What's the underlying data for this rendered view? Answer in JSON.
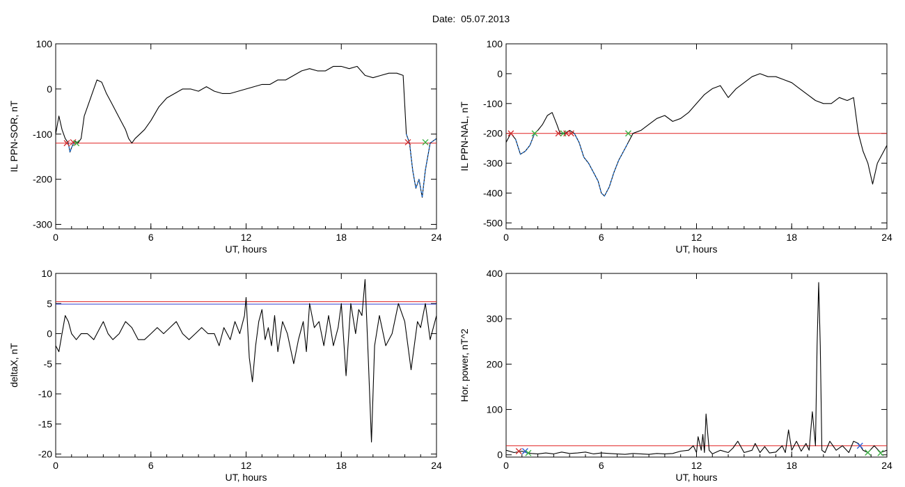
{
  "page": {
    "title": "Date:  05.07.2013"
  },
  "colors": {
    "trace": "#000000",
    "threshold_red": "#e02020",
    "threshold_blue": "#3040d0",
    "segment_blue": "#1e6fd0",
    "marker_red": "#d03030",
    "marker_green": "#3cb043",
    "marker_blue": "#2a5bd7"
  },
  "chart_data": [
    {
      "type": "line",
      "id": "il-ppn-sor",
      "xlabel": "UT, hours",
      "ylabel": "IL PPN-SOR, nT",
      "xlim": [
        0,
        24
      ],
      "ylim": [
        -310,
        100
      ],
      "xticks": [
        0,
        6,
        12,
        18,
        24
      ],
      "xtick_labels": [
        "0",
        "6",
        "12",
        "18",
        "24"
      ],
      "yticks": [
        100,
        0,
        -100,
        -200,
        -300
      ],
      "ytick_labels": [
        "100",
        "0",
        "-100",
        "-200",
        "-300"
      ],
      "threshold_lines": [
        {
          "y": -120,
          "color": "red"
        }
      ],
      "series": [
        {
          "x": [
            0,
            0.2,
            0.4,
            0.6,
            0.8,
            0.9,
            1.0,
            1.2,
            1.4,
            1.6,
            1.8,
            2.0,
            2.3,
            2.6,
            2.9,
            3.2,
            3.5,
            3.8,
            4.1,
            4.4,
            4.6,
            4.8,
            5.0,
            5.3,
            5.6,
            6.0,
            6.5,
            7.0,
            7.5,
            8.0,
            8.5,
            9.0,
            9.5,
            10,
            10.5,
            11,
            11.5,
            12,
            12.5,
            13,
            13.5,
            14,
            14.5,
            15,
            15.5,
            16,
            16.5,
            17,
            17.5,
            18,
            18.5,
            19,
            19.5,
            20,
            20.5,
            21,
            21.5,
            21.9,
            22.1,
            22.3,
            22.5,
            22.7,
            22.9,
            23.1,
            23.3,
            23.6,
            24
          ],
          "y": [
            -100,
            -60,
            -90,
            -110,
            -120,
            -140,
            -130,
            -115,
            -120,
            -110,
            -60,
            -40,
            -10,
            20,
            15,
            -10,
            -30,
            -50,
            -70,
            -90,
            -110,
            -120,
            -110,
            -100,
            -90,
            -70,
            -40,
            -20,
            -10,
            0,
            0,
            -5,
            5,
            -5,
            -10,
            -10,
            -5,
            0,
            5,
            10,
            10,
            20,
            20,
            30,
            40,
            45,
            40,
            40,
            50,
            50,
            45,
            50,
            30,
            25,
            30,
            35,
            35,
            30,
            -100,
            -120,
            -180,
            -220,
            -200,
            -240,
            -180,
            -120,
            -110
          ],
          "blue_ranges": [
            [
              0.8,
              1.3
            ],
            [
              22.1,
              24
            ]
          ]
        }
      ],
      "markers": [
        {
          "x": 0.7,
          "y": -120,
          "symbol": "x",
          "color": "red"
        },
        {
          "x": 1.1,
          "y": -118,
          "symbol": "x",
          "color": "red"
        },
        {
          "x": 1.3,
          "y": -120,
          "symbol": "x",
          "color": "green"
        },
        {
          "x": 22.2,
          "y": -118,
          "symbol": "x",
          "color": "red"
        },
        {
          "x": 23.3,
          "y": -118,
          "symbol": "x",
          "color": "green"
        }
      ]
    },
    {
      "type": "line",
      "id": "il-ppn-nal",
      "xlabel": "UT, hours",
      "ylabel": "IL PPN-NAL, nT",
      "xlim": [
        0,
        24
      ],
      "ylim": [
        -520,
        100
      ],
      "xticks": [
        0,
        6,
        12,
        18,
        24
      ],
      "xtick_labels": [
        "0",
        "6",
        "12",
        "18",
        "24"
      ],
      "yticks": [
        100,
        0,
        -100,
        -200,
        -300,
        -400,
        -500
      ],
      "ytick_labels": [
        "100",
        "0",
        "-100",
        "-200",
        "-300",
        "-400",
        "-500"
      ],
      "threshold_lines": [
        {
          "y": -200,
          "color": "red"
        }
      ],
      "series": [
        {
          "x": [
            0,
            0.3,
            0.6,
            0.9,
            1.2,
            1.5,
            1.8,
            2.0,
            2.3,
            2.6,
            2.9,
            3.2,
            3.4,
            3.7,
            4.0,
            4.3,
            4.6,
            4.9,
            5.2,
            5.5,
            5.8,
            6.0,
            6.2,
            6.5,
            6.8,
            7.1,
            7.4,
            7.7,
            8.0,
            8.5,
            9.0,
            9.5,
            10,
            10.5,
            11,
            11.5,
            12,
            12.5,
            13,
            13.5,
            14,
            14.5,
            15,
            15.5,
            16,
            16.5,
            17,
            17.5,
            18,
            18.5,
            19,
            19.5,
            20,
            20.5,
            21,
            21.5,
            21.9,
            22.2,
            22.5,
            22.8,
            23.1,
            23.4,
            23.7,
            24
          ],
          "y": [
            -230,
            -200,
            -220,
            -270,
            -260,
            -240,
            -200,
            -190,
            -170,
            -140,
            -130,
            -170,
            -200,
            -200,
            -190,
            -200,
            -230,
            -280,
            -300,
            -330,
            -360,
            -400,
            -410,
            -380,
            -330,
            -290,
            -260,
            -230,
            -200,
            -190,
            -170,
            -150,
            -140,
            -160,
            -150,
            -130,
            -100,
            -70,
            -50,
            -40,
            -80,
            -50,
            -30,
            -10,
            0,
            -10,
            -10,
            -20,
            -30,
            -50,
            -70,
            -90,
            -100,
            -100,
            -80,
            -90,
            -80,
            -200,
            -260,
            -300,
            -370,
            -300,
            -270,
            -240
          ],
          "blue_ranges": [
            [
              0.6,
              1.8
            ],
            [
              3.6,
              3.8
            ],
            [
              4.3,
              7.7
            ]
          ]
        }
      ],
      "markers": [
        {
          "x": 0.3,
          "y": -200,
          "symbol": "x",
          "color": "red"
        },
        {
          "x": 1.8,
          "y": -200,
          "symbol": "x",
          "color": "green"
        },
        {
          "x": 3.3,
          "y": -200,
          "symbol": "x",
          "color": "red"
        },
        {
          "x": 3.6,
          "y": -200,
          "symbol": "x",
          "color": "green"
        },
        {
          "x": 3.8,
          "y": -200,
          "symbol": "x",
          "color": "red"
        },
        {
          "x": 4.1,
          "y": -200,
          "symbol": "x",
          "color": "red"
        },
        {
          "x": 7.7,
          "y": -200,
          "symbol": "x",
          "color": "green"
        }
      ]
    },
    {
      "type": "line",
      "id": "deltax",
      "xlabel": "UT, hours",
      "ylabel": "deltaX, nT",
      "xlim": [
        0,
        24
      ],
      "ylim": [
        -20.5,
        10
      ],
      "xticks": [
        0,
        6,
        12,
        18,
        24
      ],
      "xtick_labels": [
        "0",
        "6",
        "12",
        "18",
        "24"
      ],
      "yticks": [
        10,
        5,
        0,
        -5,
        -10,
        -15,
        -20
      ],
      "ytick_labels": [
        "10",
        "5",
        "0",
        "-5",
        "-10",
        "-15",
        "-20"
      ],
      "threshold_lines": [
        {
          "y": 5.3,
          "color": "red"
        },
        {
          "y": 4.9,
          "color": "blue"
        }
      ],
      "series": [
        {
          "x": [
            0,
            0.2,
            0.4,
            0.6,
            0.8,
            1.0,
            1.3,
            1.6,
            2.0,
            2.4,
            2.8,
            3.0,
            3.3,
            3.6,
            4.0,
            4.4,
            4.8,
            5.2,
            5.6,
            6.0,
            6.4,
            6.8,
            7.2,
            7.6,
            8.0,
            8.4,
            8.8,
            9.2,
            9.6,
            10.0,
            10.3,
            10.6,
            11.0,
            11.3,
            11.6,
            11.9,
            12.0,
            12.2,
            12.4,
            12.6,
            12.8,
            13.0,
            13.2,
            13.4,
            13.6,
            13.8,
            14.0,
            14.3,
            14.6,
            15.0,
            15.3,
            15.6,
            15.8,
            16.0,
            16.3,
            16.6,
            16.9,
            17.2,
            17.5,
            17.8,
            18.0,
            18.3,
            18.6,
            18.9,
            19.1,
            19.3,
            19.5,
            19.7,
            19.9,
            20.1,
            20.4,
            20.8,
            21.2,
            21.6,
            22.0,
            22.4,
            22.8,
            23.0,
            23.3,
            23.6,
            24
          ],
          "y": [
            -2,
            -3,
            0,
            3,
            2,
            0,
            -1,
            0,
            0,
            -1,
            1,
            2,
            0,
            -1,
            0,
            2,
            1,
            -1,
            -1,
            0,
            1,
            0,
            1,
            2,
            0,
            -1,
            0,
            1,
            0,
            0,
            -2,
            1,
            -1,
            2,
            0,
            3,
            6,
            -4,
            -8,
            -2,
            2,
            4,
            -1,
            1,
            -2,
            3,
            -3,
            2,
            0,
            -5,
            -1,
            2,
            -3,
            5,
            1,
            2,
            -2,
            3,
            -2,
            1,
            5,
            -7,
            5,
            0,
            4,
            3,
            9,
            -4,
            -18,
            -2,
            3,
            -2,
            0,
            5,
            2,
            -6,
            2,
            1,
            5,
            -1,
            3
          ],
          "blue_ranges": []
        }
      ],
      "markers": []
    },
    {
      "type": "line",
      "id": "hor-power",
      "xlabel": "UT, hours",
      "ylabel": "Hor. power, nT^2",
      "xlim": [
        0,
        24
      ],
      "ylim": [
        -5,
        400
      ],
      "xticks": [
        0,
        6,
        12,
        18,
        24
      ],
      "xtick_labels": [
        "0",
        "6",
        "12",
        "18",
        "24"
      ],
      "yticks": [
        400,
        300,
        200,
        100,
        0
      ],
      "ytick_labels": [
        "400",
        "300",
        "200",
        "100",
        "0"
      ],
      "threshold_lines": [
        {
          "y": 20,
          "color": "red"
        }
      ],
      "series": [
        {
          "x": [
            0,
            0.5,
            1.0,
            1.3,
            1.6,
            2.0,
            2.5,
            3.0,
            3.5,
            4.0,
            4.5,
            5.0,
            5.5,
            6.0,
            6.5,
            7.0,
            7.5,
            8.0,
            8.5,
            9.0,
            9.5,
            10.0,
            10.5,
            11.0,
            11.5,
            11.8,
            12.0,
            12.1,
            12.3,
            12.4,
            12.5,
            12.6,
            12.8,
            13.0,
            13.5,
            14.0,
            14.3,
            14.6,
            15.0,
            15.5,
            15.7,
            16.0,
            16.3,
            16.6,
            17.0,
            17.4,
            17.6,
            17.8,
            18.0,
            18.3,
            18.6,
            18.9,
            19.1,
            19.3,
            19.5,
            19.6,
            19.7,
            19.8,
            19.9,
            20.1,
            20.4,
            20.8,
            21.2,
            21.6,
            21.9,
            22.2,
            22.5,
            22.8,
            23.2,
            23.6,
            24
          ],
          "y": [
            10,
            5,
            8,
            5,
            3,
            2,
            4,
            2,
            6,
            3,
            4,
            6,
            2,
            4,
            3,
            2,
            1,
            3,
            2,
            1,
            3,
            2,
            3,
            8,
            10,
            20,
            5,
            40,
            10,
            45,
            5,
            90,
            10,
            2,
            10,
            5,
            15,
            30,
            5,
            10,
            25,
            5,
            18,
            4,
            6,
            20,
            5,
            55,
            10,
            30,
            8,
            25,
            10,
            95,
            20,
            240,
            380,
            240,
            10,
            5,
            30,
            10,
            20,
            5,
            30,
            25,
            10,
            5,
            20,
            5,
            10
          ],
          "blue_ranges": []
        }
      ],
      "markers": [
        {
          "x": 0.8,
          "y": 8,
          "symbol": "x",
          "color": "red"
        },
        {
          "x": 1.2,
          "y": 8,
          "symbol": "x",
          "color": "blue"
        },
        {
          "x": 1.4,
          "y": 4,
          "symbol": "x",
          "color": "green"
        },
        {
          "x": 22.3,
          "y": 20,
          "symbol": "x",
          "color": "blue"
        },
        {
          "x": 22.8,
          "y": 5,
          "symbol": "x",
          "color": "green"
        },
        {
          "x": 23.6,
          "y": 4,
          "symbol": "x",
          "color": "green"
        }
      ]
    }
  ]
}
